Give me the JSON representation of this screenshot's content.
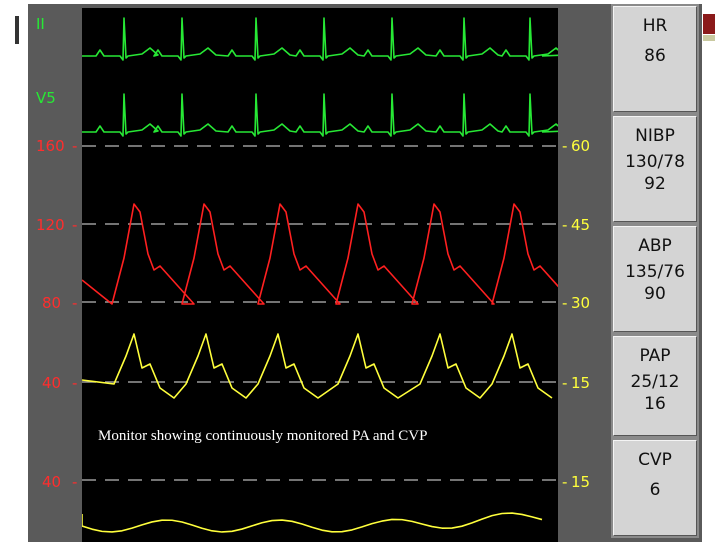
{
  "monitor": {
    "leads": [
      "II",
      "V5"
    ],
    "left_scale": [
      "160",
      "120",
      "80",
      "40",
      "40"
    ],
    "right_scale": [
      "60",
      "45",
      "30",
      "15",
      "15"
    ],
    "caption": "Monitor showing continuously monitored PA and CVP",
    "colors": {
      "ecg": "#27e835",
      "abp": "#ff2020",
      "pap": "#ffff3c",
      "cvp": "#ffff3c",
      "grid": "#9a9a9a"
    }
  },
  "vitals": [
    {
      "name": "HR",
      "value": "86"
    },
    {
      "name": "NIBP",
      "value": "130/78",
      "mean": "92"
    },
    {
      "name": "ABP",
      "value": "135/76",
      "mean": "90"
    },
    {
      "name": "PAP",
      "value": "25/12",
      "mean": "16"
    },
    {
      "name": "CVP",
      "value": "6"
    }
  ]
}
